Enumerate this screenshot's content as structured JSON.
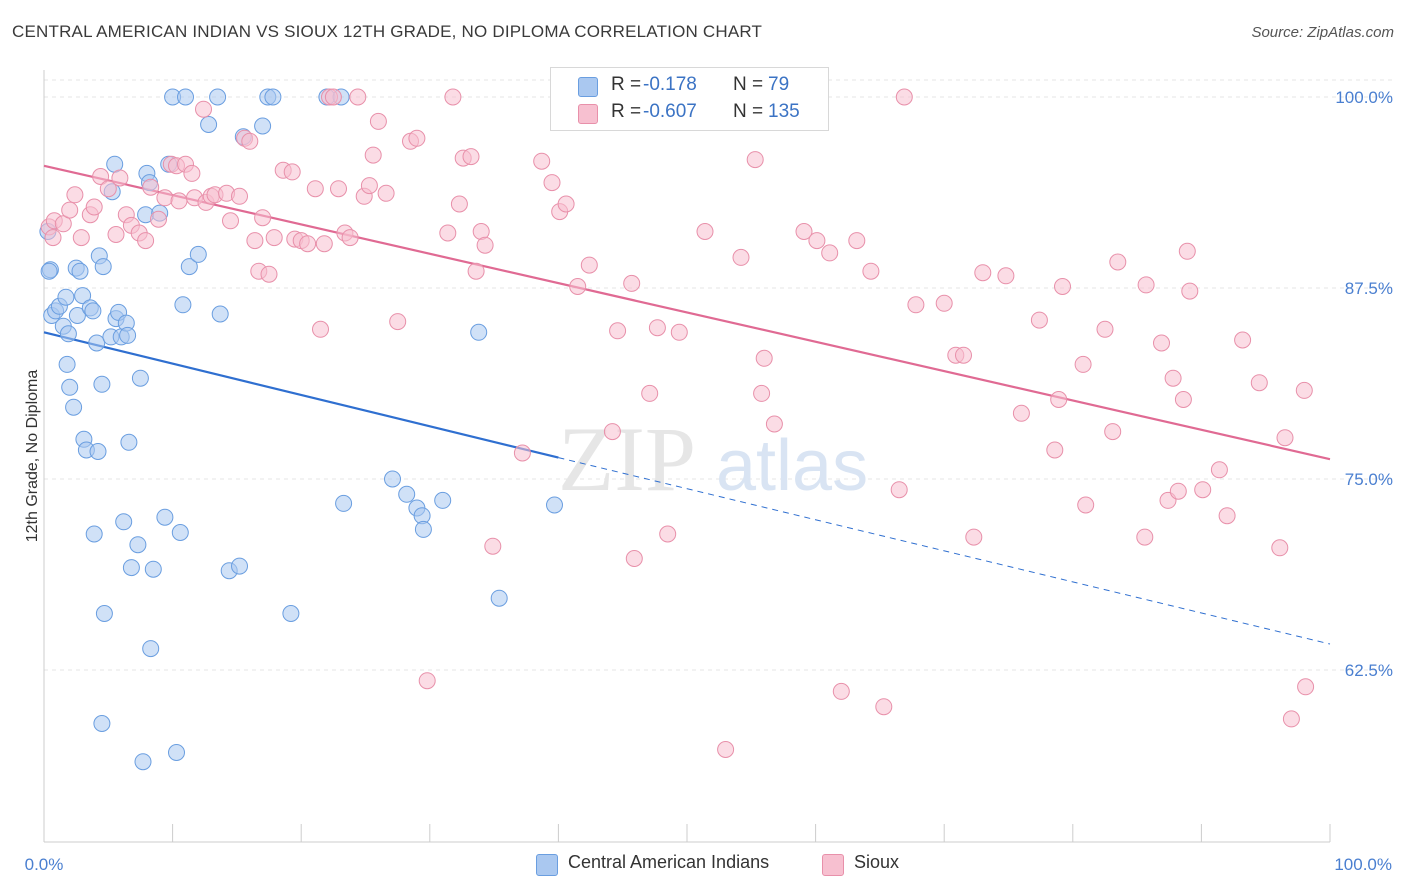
{
  "title": "CENTRAL AMERICAN INDIAN VS SIOUX 12TH GRADE, NO DIPLOMA CORRELATION CHART",
  "source": "Source: ZipAtlas.com",
  "watermark": {
    "zip": "ZIP",
    "atlas": "atlas"
  },
  "legend": {
    "r_label": "R =",
    "n_label": "N =",
    "rows": [
      {
        "r": "-0.178",
        "n": "79",
        "color": "#aac8f0",
        "border": "#6a9ee0"
      },
      {
        "r": "-0.607",
        "n": "135",
        "color": "#f7c0d0",
        "border": "#e890aa"
      }
    ]
  },
  "bottom_legend": [
    {
      "label": "Central American Indians",
      "color": "#aac8f0",
      "border": "#6a9ee0"
    },
    {
      "label": "Sioux",
      "color": "#f7c0d0",
      "border": "#e890aa"
    }
  ],
  "chart_data": {
    "type": "scatter",
    "title": "CENTRAL AMERICAN INDIAN VS SIOUX 12TH GRADE, NO DIPLOMA CORRELATION CHART",
    "xlabel": "",
    "ylabel": "12th Grade, No Diploma",
    "xlim": [
      0,
      100
    ],
    "ylim": [
      52,
      101
    ],
    "x_tick_labels": [
      "0.0%",
      "100.0%"
    ],
    "y_ticks": [
      62.5,
      75.0,
      87.5,
      100.0
    ],
    "y_tick_labels": [
      "62.5%",
      "75.0%",
      "87.5%",
      "100.0%"
    ],
    "grid": true,
    "series": [
      {
        "name": "Central American Indians",
        "color": "#aac8f0",
        "stroke": "#6a9ee0",
        "line_color": "#2f6fd0",
        "trend": {
          "x0": 0,
          "y0": 84.6,
          "x1": 40,
          "y1": 76.4,
          "dash_x1": 100,
          "dash_y1": 64.2
        },
        "points": [
          [
            0.5,
            88.7
          ],
          [
            0.6,
            85.7
          ],
          [
            0.9,
            86.0
          ],
          [
            1.2,
            86.3
          ],
          [
            1.5,
            85.0
          ],
          [
            1.7,
            86.9
          ],
          [
            1.8,
            82.5
          ],
          [
            1.9,
            84.5
          ],
          [
            2.0,
            81.0
          ],
          [
            2.3,
            79.7
          ],
          [
            2.5,
            88.8
          ],
          [
            2.6,
            85.7
          ],
          [
            2.8,
            88.6
          ],
          [
            3.0,
            87.0
          ],
          [
            3.1,
            77.6
          ],
          [
            3.3,
            76.9
          ],
          [
            3.6,
            86.2
          ],
          [
            3.8,
            86.0
          ],
          [
            3.9,
            71.4
          ],
          [
            4.1,
            83.9
          ],
          [
            4.2,
            76.8
          ],
          [
            4.3,
            89.6
          ],
          [
            4.5,
            81.2
          ],
          [
            4.6,
            88.9
          ],
          [
            4.7,
            66.2
          ],
          [
            4.5,
            59.0
          ],
          [
            5.2,
            84.3
          ],
          [
            5.3,
            93.8
          ],
          [
            5.5,
            95.6
          ],
          [
            5.6,
            85.5
          ],
          [
            5.8,
            85.9
          ],
          [
            6.0,
            84.3
          ],
          [
            6.2,
            72.2
          ],
          [
            6.4,
            85.2
          ],
          [
            6.5,
            84.4
          ],
          [
            6.6,
            77.4
          ],
          [
            6.8,
            69.2
          ],
          [
            7.3,
            70.7
          ],
          [
            7.5,
            81.6
          ],
          [
            7.7,
            56.5
          ],
          [
            7.9,
            92.3
          ],
          [
            8.0,
            95.0
          ],
          [
            8.2,
            94.4
          ],
          [
            8.3,
            63.9
          ],
          [
            8.5,
            69.1
          ],
          [
            9.0,
            92.4
          ],
          [
            9.4,
            72.5
          ],
          [
            9.7,
            95.6
          ],
          [
            10.0,
            100.0
          ],
          [
            10.3,
            57.1
          ],
          [
            10.6,
            71.5
          ],
          [
            10.8,
            86.4
          ],
          [
            11.0,
            100.0
          ],
          [
            11.3,
            88.9
          ],
          [
            12.0,
            89.7
          ],
          [
            12.8,
            98.2
          ],
          [
            13.5,
            100.0
          ],
          [
            13.7,
            85.8
          ],
          [
            14.4,
            69.0
          ],
          [
            15.2,
            69.3
          ],
          [
            15.5,
            97.4
          ],
          [
            17.0,
            98.1
          ],
          [
            17.4,
            100.0
          ],
          [
            17.8,
            100.0
          ],
          [
            19.2,
            66.2
          ],
          [
            22.0,
            100.0
          ],
          [
            23.1,
            100.0
          ],
          [
            23.3,
            73.4
          ],
          [
            27.1,
            75.0
          ],
          [
            28.2,
            74.0
          ],
          [
            29.0,
            73.1
          ],
          [
            29.4,
            72.6
          ],
          [
            29.5,
            71.7
          ],
          [
            31.0,
            73.6
          ],
          [
            33.8,
            84.6
          ],
          [
            35.4,
            67.2
          ],
          [
            39.7,
            73.3
          ],
          [
            0.3,
            91.2
          ],
          [
            0.4,
            88.6
          ]
        ]
      },
      {
        "name": "Sioux",
        "color": "#f7c0d0",
        "stroke": "#e890aa",
        "line_color": "#e06a93",
        "trend": {
          "x0": 0,
          "y0": 95.5,
          "x1": 100,
          "y1": 76.3
        },
        "points": [
          [
            0.4,
            91.5
          ],
          [
            0.8,
            91.9
          ],
          [
            1.5,
            91.7
          ],
          [
            2.0,
            92.6
          ],
          [
            2.4,
            93.6
          ],
          [
            2.9,
            90.8
          ],
          [
            3.6,
            92.3
          ],
          [
            3.9,
            92.8
          ],
          [
            4.4,
            94.8
          ],
          [
            5.0,
            94.0
          ],
          [
            5.6,
            91.0
          ],
          [
            5.9,
            94.7
          ],
          [
            6.4,
            92.3
          ],
          [
            6.8,
            91.6
          ],
          [
            7.4,
            91.1
          ],
          [
            7.9,
            90.6
          ],
          [
            8.3,
            94.1
          ],
          [
            8.9,
            92.0
          ],
          [
            9.4,
            93.4
          ],
          [
            9.9,
            95.6
          ],
          [
            10.3,
            95.5
          ],
          [
            10.5,
            93.2
          ],
          [
            11.0,
            95.6
          ],
          [
            11.5,
            95.0
          ],
          [
            11.7,
            93.4
          ],
          [
            12.4,
            99.2
          ],
          [
            12.6,
            93.1
          ],
          [
            13.0,
            93.5
          ],
          [
            13.3,
            93.6
          ],
          [
            14.2,
            93.7
          ],
          [
            14.5,
            91.9
          ],
          [
            15.2,
            93.5
          ],
          [
            15.6,
            97.3
          ],
          [
            16.0,
            97.1
          ],
          [
            16.4,
            90.6
          ],
          [
            16.7,
            88.6
          ],
          [
            17.0,
            92.1
          ],
          [
            17.5,
            88.4
          ],
          [
            17.9,
            90.8
          ],
          [
            18.6,
            95.2
          ],
          [
            19.3,
            95.1
          ],
          [
            19.5,
            90.7
          ],
          [
            20.0,
            90.6
          ],
          [
            20.5,
            90.4
          ],
          [
            21.1,
            94.0
          ],
          [
            21.5,
            84.8
          ],
          [
            21.8,
            90.4
          ],
          [
            22.2,
            100.0
          ],
          [
            22.5,
            100.0
          ],
          [
            22.9,
            94.0
          ],
          [
            23.4,
            91.1
          ],
          [
            23.8,
            90.8
          ],
          [
            24.4,
            100.0
          ],
          [
            24.9,
            93.5
          ],
          [
            25.3,
            94.2
          ],
          [
            25.6,
            96.2
          ],
          [
            26.0,
            98.4
          ],
          [
            26.6,
            93.7
          ],
          [
            27.5,
            85.3
          ],
          [
            28.5,
            97.1
          ],
          [
            29.0,
            97.3
          ],
          [
            29.8,
            61.8
          ],
          [
            31.4,
            91.1
          ],
          [
            31.8,
            100.0
          ],
          [
            32.3,
            93.0
          ],
          [
            32.6,
            96.0
          ],
          [
            33.2,
            96.1
          ],
          [
            33.6,
            88.6
          ],
          [
            34.0,
            91.2
          ],
          [
            34.3,
            90.3
          ],
          [
            34.9,
            70.6
          ],
          [
            37.2,
            76.7
          ],
          [
            38.7,
            95.8
          ],
          [
            39.5,
            94.4
          ],
          [
            40.1,
            92.5
          ],
          [
            40.6,
            93.0
          ],
          [
            41.5,
            87.6
          ],
          [
            42.4,
            89.0
          ],
          [
            44.2,
            78.1
          ],
          [
            44.6,
            84.7
          ],
          [
            45.7,
            87.8
          ],
          [
            45.9,
            69.8
          ],
          [
            47.1,
            80.6
          ],
          [
            47.7,
            84.9
          ],
          [
            48.5,
            71.4
          ],
          [
            49.4,
            84.6
          ],
          [
            51.4,
            91.2
          ],
          [
            53.0,
            57.3
          ],
          [
            54.2,
            89.5
          ],
          [
            55.3,
            95.9
          ],
          [
            55.8,
            80.6
          ],
          [
            56.0,
            82.9
          ],
          [
            56.8,
            78.6
          ],
          [
            59.1,
            91.2
          ],
          [
            60.1,
            90.6
          ],
          [
            61.1,
            89.8
          ],
          [
            62.0,
            61.1
          ],
          [
            63.2,
            90.6
          ],
          [
            64.3,
            88.6
          ],
          [
            65.3,
            60.1
          ],
          [
            66.5,
            74.3
          ],
          [
            66.9,
            100.0
          ],
          [
            67.8,
            86.4
          ],
          [
            70.0,
            86.5
          ],
          [
            70.9,
            83.1
          ],
          [
            71.5,
            83.1
          ],
          [
            72.3,
            71.2
          ],
          [
            73.0,
            88.5
          ],
          [
            74.8,
            88.3
          ],
          [
            76.0,
            79.3
          ],
          [
            77.4,
            85.4
          ],
          [
            78.6,
            76.9
          ],
          [
            78.9,
            80.2
          ],
          [
            79.2,
            87.6
          ],
          [
            80.8,
            82.5
          ],
          [
            81.0,
            73.3
          ],
          [
            82.5,
            84.8
          ],
          [
            83.1,
            78.1
          ],
          [
            83.5,
            89.2
          ],
          [
            85.6,
            71.2
          ],
          [
            85.7,
            87.7
          ],
          [
            86.9,
            83.9
          ],
          [
            87.4,
            73.6
          ],
          [
            87.8,
            81.6
          ],
          [
            88.2,
            74.2
          ],
          [
            88.6,
            80.2
          ],
          [
            88.9,
            89.9
          ],
          [
            89.1,
            87.3
          ],
          [
            90.1,
            74.3
          ],
          [
            91.4,
            75.6
          ],
          [
            92.0,
            72.6
          ],
          [
            93.2,
            84.1
          ],
          [
            94.5,
            81.3
          ],
          [
            96.5,
            77.7
          ],
          [
            96.1,
            70.5
          ],
          [
            97.0,
            59.3
          ],
          [
            98.0,
            80.8
          ],
          [
            98.1,
            61.4
          ],
          [
            0.7,
            90.8
          ]
        ]
      }
    ]
  }
}
